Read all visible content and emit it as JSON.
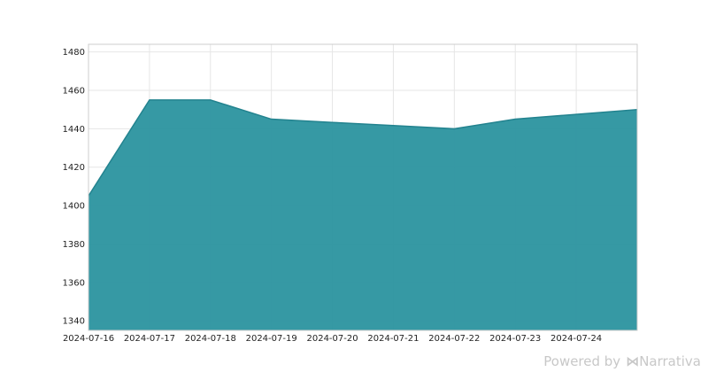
{
  "chart_data": {
    "type": "area",
    "title": "",
    "xlabel": "",
    "ylabel": "",
    "x": [
      "2024-07-16",
      "2024-07-17",
      "2024-07-18",
      "2024-07-19",
      "2024-07-20",
      "2024-07-21",
      "2024-07-22",
      "2024-07-23",
      "2024-07-24",
      "2024-07-25"
    ],
    "x_tick_labels": [
      "2024-07-16",
      "2024-07-17",
      "2024-07-18",
      "2024-07-19",
      "2024-07-20",
      "2024-07-21",
      "2024-07-22",
      "2024-07-23",
      "2024-07-24"
    ],
    "series": [
      {
        "values": [
          1405,
          1455,
          1455,
          1445,
          1443.3,
          1441.7,
          1440,
          1445,
          1447.5,
          1450
        ]
      }
    ],
    "ylim": [
      1335,
      1484
    ],
    "y_ticks": [
      1340,
      1360,
      1380,
      1400,
      1420,
      1440,
      1460,
      1480
    ],
    "grid": true,
    "legend": "none",
    "fill_color": "#2b939f",
    "line_color": "#23838f"
  },
  "watermark": {
    "prefix": "Powered by",
    "brand": "Narrativa",
    "brand_icon": "narrativa-logo-icon"
  }
}
